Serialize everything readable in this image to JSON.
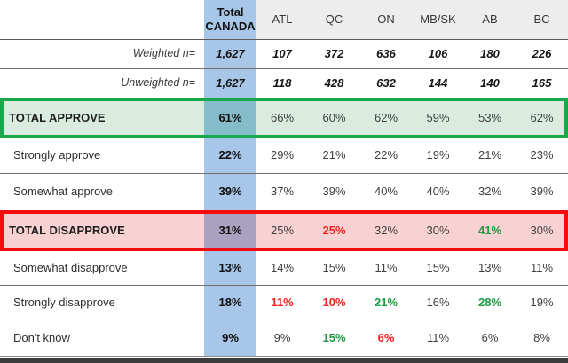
{
  "colors": {
    "canada_column_blue": "#a7c6e8",
    "header_gray": "#ededed",
    "approve_fill": "#d9ecdf",
    "approve_border": "#17a84b",
    "approve_canada_overlap": "#84bcc9",
    "disapprove_fill": "#f8d2d2",
    "disapprove_border": "#f50d0d",
    "disapprove_canada_overlap": "#aaa1c1",
    "sig_red_text": "#f41f1f",
    "sig_green_text": "#1d9a43",
    "bottom_bar": "#3b3b3b"
  },
  "table": {
    "header": {
      "canada": {
        "line1": "Total",
        "line2": "CANADA"
      },
      "regions": [
        {
          "key": "atl",
          "label": "ATL"
        },
        {
          "key": "qc",
          "label": "QC"
        },
        {
          "key": "on",
          "label": "ON"
        },
        {
          "key": "mbsk",
          "label": "MB/SK"
        },
        {
          "key": "ab",
          "label": "AB"
        },
        {
          "key": "bc",
          "label": "BC"
        }
      ]
    },
    "rows": [
      {
        "id": "weighted-n",
        "type": "n",
        "label": "Weighted n=",
        "values": [
          "1,627",
          "107",
          "372",
          "636",
          "106",
          "180",
          "226"
        ],
        "sig": {}
      },
      {
        "id": "unweighted-n",
        "type": "n",
        "label": "Unweighted n=",
        "values": [
          "1,627",
          "118",
          "428",
          "632",
          "144",
          "140",
          "165"
        ],
        "sig": {}
      },
      {
        "id": "total-approve",
        "type": "total-approve",
        "label": "TOTAL APPROVE",
        "values": [
          "61%",
          "66%",
          "60%",
          "62%",
          "59%",
          "53%",
          "62%"
        ],
        "sig": {}
      },
      {
        "id": "strongly-approve",
        "type": "pct",
        "label": "Strongly approve",
        "values": [
          "22%",
          "29%",
          "21%",
          "22%",
          "19%",
          "21%",
          "23%"
        ],
        "sig": {}
      },
      {
        "id": "somewhat-approve",
        "type": "pct-nosep",
        "label": "Somewhat approve",
        "values": [
          "39%",
          "37%",
          "39%",
          "40%",
          "40%",
          "32%",
          "39%"
        ],
        "sig": {}
      },
      {
        "id": "total-disapprove",
        "type": "total-disapprove",
        "label": "TOTAL DISAPPROVE",
        "values": [
          "31%",
          "25%",
          "25%",
          "32%",
          "30%",
          "41%",
          "30%"
        ],
        "sig": {
          "2": "red",
          "5": "green"
        }
      },
      {
        "id": "somewhat-disapprove",
        "type": "pct-sdis",
        "label": "Somewhat disapprove",
        "values": [
          "13%",
          "14%",
          "15%",
          "11%",
          "15%",
          "13%",
          "11%"
        ],
        "sig": {}
      },
      {
        "id": "strongly-disapprove",
        "type": "pct-stdis",
        "label": "Strongly disapprove",
        "values": [
          "18%",
          "11%",
          "10%",
          "21%",
          "16%",
          "28%",
          "19%"
        ],
        "sig": {
          "1": "red",
          "2": "red",
          "3": "green",
          "5": "green"
        }
      },
      {
        "id": "dont-know",
        "type": "pct-dk",
        "label": "Don't know",
        "values": [
          "9%",
          "9%",
          "15%",
          "6%",
          "11%",
          "6%",
          "8%"
        ],
        "sig": {
          "2": "green",
          "3": "red"
        }
      }
    ]
  }
}
